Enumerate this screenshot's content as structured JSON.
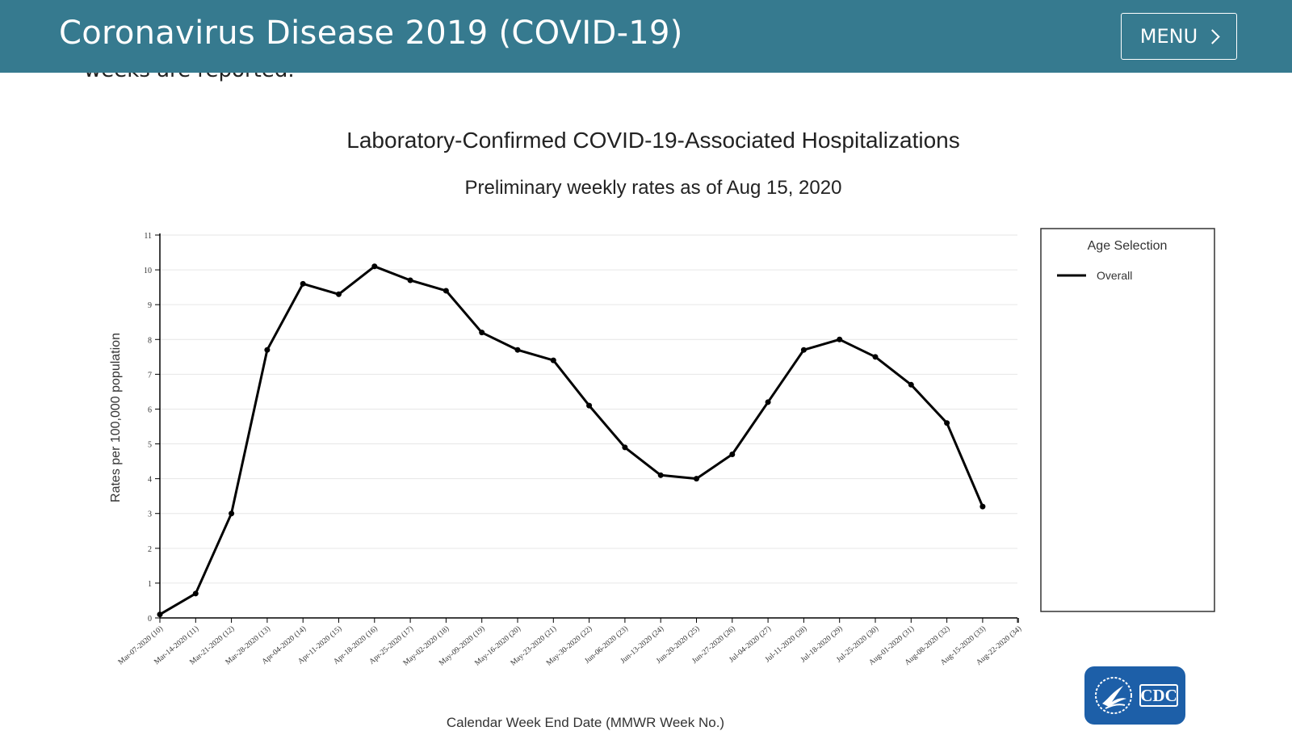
{
  "header": {
    "title": "Coronavirus Disease 2019 (COVID-19)",
    "menu_label": "MENU"
  },
  "page": {
    "partial_text": "weeks are reported."
  },
  "logo": {
    "text": "CDC",
    "color": "#1d5fa8"
  },
  "colors": {
    "header_bg": "#367a8f",
    "series": "#000000"
  },
  "chart_data": {
    "type": "line",
    "title": "Laboratory-Confirmed COVID-19-Associated Hospitalizations",
    "subtitle": "Preliminary weekly rates as of Aug 15, 2020",
    "xlabel": "Calendar Week End Date (MMWR Week No.)",
    "ylabel": "Rates per 100,000 population",
    "ylim": [
      0,
      11
    ],
    "yticks": [
      "0",
      "1",
      "2",
      "3",
      "4",
      "5",
      "6",
      "7",
      "8",
      "9",
      "10",
      "11"
    ],
    "grid": true,
    "legend": {
      "title": "Age Selection",
      "placement": "right"
    },
    "categories": [
      "Mar-07-2020 (10)",
      "Mar-14-2020 (11)",
      "Mar-21-2020 (12)",
      "Mar-28-2020 (13)",
      "Apr-04-2020 (14)",
      "Apr-11-2020 (15)",
      "Apr-18-2020 (16)",
      "Apr-25-2020 (17)",
      "May-02-2020 (18)",
      "May-09-2020 (19)",
      "May-16-2020 (20)",
      "May-23-2020 (21)",
      "May-30-2020 (22)",
      "Jun-06-2020 (23)",
      "Jun-13-2020 (24)",
      "Jun-20-2020 (25)",
      "Jun-27-2020 (26)",
      "Jul-04-2020 (27)",
      "Jul-11-2020 (28)",
      "Jul-18-2020 (29)",
      "Jul-25-2020 (30)",
      "Aug-01-2020 (31)",
      "Aug-08-2020 (32)",
      "Aug-15-2020 (33)",
      "Aug-22-2020 (34)"
    ],
    "series": [
      {
        "name": "Overall",
        "color": "#000000",
        "values": [
          0.1,
          0.7,
          3.0,
          7.7,
          9.6,
          9.3,
          10.1,
          9.7,
          9.4,
          8.2,
          7.7,
          7.4,
          6.1,
          4.9,
          4.1,
          4.0,
          4.7,
          6.2,
          7.7,
          8.0,
          7.5,
          6.7,
          5.6,
          3.2,
          null
        ]
      }
    ]
  }
}
